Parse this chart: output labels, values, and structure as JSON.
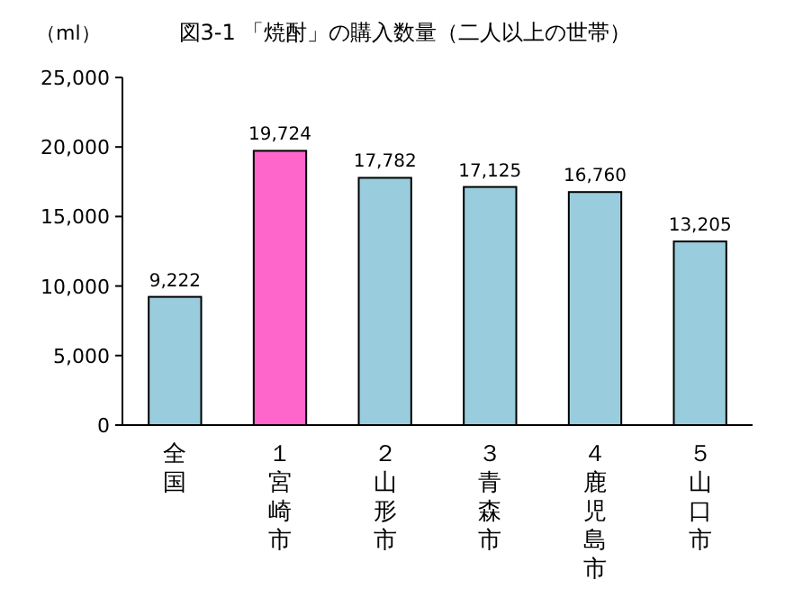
{
  "chart_data": {
    "type": "bar",
    "title": "図3-1 「焼酎」の購入数量（二人以上の世帯）",
    "ylabel": "（ml）",
    "categories": [
      "全国",
      "１宮崎市",
      "２山形市",
      "３青森市",
      "４鹿児島市",
      "５山口市"
    ],
    "values": [
      9222,
      19724,
      17782,
      17125,
      16760,
      13205
    ],
    "colors": [
      "#99ccdd",
      "#ff66cc",
      "#99ccdd",
      "#99ccdd",
      "#99ccdd",
      "#99ccdd"
    ],
    "ylim": [
      0,
      25000
    ],
    "yticks": [
      0,
      {
        "value": 5000,
        "label": "5,000"
      },
      {
        "value": 10000,
        "label": "10,000"
      },
      {
        "value": 15000,
        "label": "15,000"
      },
      {
        "value": 20000,
        "label": "20,000"
      },
      {
        "value": 25000,
        "label": "25,000"
      }
    ],
    "value_labels": [
      "9,222",
      "19,724",
      "17,782",
      "17,125",
      "16,760",
      "13,205"
    ],
    "grid": false
  }
}
